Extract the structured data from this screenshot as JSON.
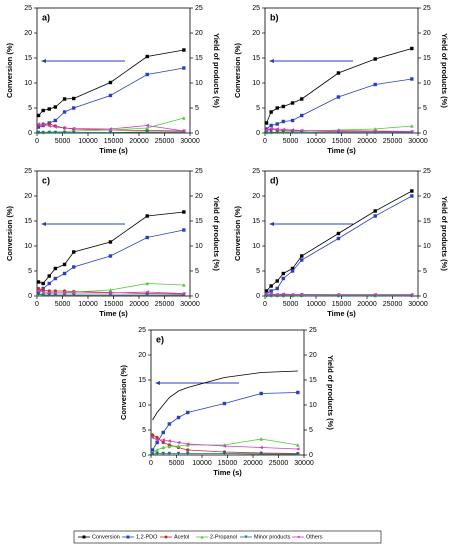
{
  "chart_data": [
    {
      "type": "line",
      "label": "a)",
      "xlabel": "Time (s)",
      "ylabel": "Conversion (%)",
      "y2label": "Yield of products (%)",
      "x": [
        300,
        1200,
        2400,
        3600,
        5400,
        7200,
        14400,
        21600,
        28800
      ],
      "xlim": [
        0,
        30000
      ],
      "xticks": [
        0,
        5000,
        10000,
        15000,
        20000,
        25000,
        30000
      ],
      "ylim": [
        0,
        25
      ],
      "yticks": [
        0,
        5,
        10,
        15,
        20,
        25
      ],
      "y2lim": [
        0,
        25
      ],
      "y2ticks": [
        0,
        5,
        10,
        15,
        20,
        25
      ],
      "series": [
        {
          "name": "Conversion",
          "color": "#000000",
          "marker": "square",
          "values": [
            3.5,
            4.5,
            4.8,
            5.2,
            6.8,
            6.9,
            10.1,
            15.3,
            16.6
          ]
        },
        {
          "name": "1,2-PDO",
          "color": "#2a3fbf",
          "marker": "square",
          "axis": "y2",
          "values": [
            1.2,
            1.5,
            2.0,
            2.5,
            4.2,
            5.0,
            7.5,
            11.7,
            13.0
          ]
        },
        {
          "name": "Acetol",
          "color": "#b03a1e",
          "marker": "circle",
          "axis": "y2",
          "values": [
            1.5,
            1.8,
            1.8,
            1.4,
            1.0,
            0.8,
            0.6,
            0.5,
            0.4
          ]
        },
        {
          "name": "2-Propanol",
          "color": "#4ccc33",
          "marker": "triangle",
          "axis": "y2",
          "values": [
            0.1,
            0.1,
            0.2,
            0.2,
            0.3,
            0.4,
            0.6,
            1.0,
            3.0
          ]
        },
        {
          "name": "Minor products",
          "color": "#1f6f7f",
          "marker": "down",
          "axis": "y2",
          "values": [
            0.1,
            0.1,
            0.1,
            0.1,
            0.1,
            0.1,
            0.1,
            0.2,
            0.2
          ]
        },
        {
          "name": "Others",
          "color": "#d13ad1",
          "marker": "left",
          "axis": "y2",
          "values": [
            1.8,
            1.6,
            1.4,
            1.2,
            1.0,
            0.9,
            0.8,
            1.5,
            0.4
          ]
        }
      ]
    },
    {
      "type": "line",
      "label": "b)",
      "xlabel": "Time (s)",
      "ylabel": "Conversion (%)",
      "y2label": "Yield of products (%)",
      "x": [
        300,
        1200,
        2400,
        3600,
        5400,
        7200,
        14400,
        21600,
        28800
      ],
      "xlim": [
        0,
        30000
      ],
      "xticks": [
        0,
        5000,
        10000,
        15000,
        20000,
        25000,
        30000
      ],
      "ylim": [
        0,
        25
      ],
      "yticks": [
        0,
        5,
        10,
        15,
        20,
        25
      ],
      "y2lim": [
        0,
        25
      ],
      "y2ticks": [
        0,
        5,
        10,
        15,
        20,
        25
      ],
      "series": [
        {
          "name": "Conversion",
          "color": "#000000",
          "marker": "square",
          "values": [
            2.0,
            4.2,
            5.0,
            5.3,
            6.0,
            6.8,
            12.0,
            14.8,
            16.9
          ]
        },
        {
          "name": "1,2-PDO",
          "color": "#2a3fbf",
          "marker": "square",
          "axis": "y2",
          "values": [
            0.8,
            1.5,
            1.8,
            2.3,
            2.5,
            3.5,
            7.2,
            9.7,
            10.8
          ]
        },
        {
          "name": "Acetol",
          "color": "#b03a1e",
          "marker": "circle",
          "axis": "y2",
          "values": [
            0.5,
            0.7,
            0.6,
            0.5,
            0.5,
            0.4,
            0.3,
            0.3,
            0.2
          ]
        },
        {
          "name": "2-Propanol",
          "color": "#4ccc33",
          "marker": "triangle",
          "axis": "y2",
          "values": [
            0.1,
            0.1,
            0.2,
            0.2,
            0.3,
            0.3,
            0.6,
            0.8,
            1.4
          ]
        },
        {
          "name": "Minor products",
          "color": "#1f6f7f",
          "marker": "down",
          "axis": "y2",
          "values": [
            0.1,
            0.1,
            0.1,
            0.1,
            0.1,
            0.1,
            0.1,
            0.1,
            0.1
          ]
        },
        {
          "name": "Others",
          "color": "#d13ad1",
          "marker": "left",
          "axis": "y2",
          "values": [
            0.6,
            0.9,
            0.8,
            0.7,
            0.6,
            0.5,
            0.5,
            0.4,
            0.3
          ]
        }
      ]
    },
    {
      "type": "line",
      "label": "c)",
      "xlabel": "Time (s)",
      "ylabel": "Conversion (%)",
      "y2label": "Yield of products (%)",
      "x": [
        300,
        1200,
        2400,
        3600,
        5400,
        7200,
        14400,
        21600,
        28800
      ],
      "xlim": [
        0,
        30000
      ],
      "xticks": [
        0,
        5000,
        10000,
        15000,
        20000,
        25000,
        30000
      ],
      "ylim": [
        0,
        25
      ],
      "yticks": [
        0,
        5,
        10,
        15,
        20,
        25
      ],
      "y2lim": [
        0,
        25
      ],
      "y2ticks": [
        0,
        5,
        10,
        15,
        20,
        25
      ],
      "series": [
        {
          "name": "Conversion",
          "color": "#000000",
          "marker": "square",
          "values": [
            2.8,
            2.5,
            4.0,
            5.5,
            6.3,
            8.8,
            10.8,
            16.0,
            16.8
          ]
        },
        {
          "name": "1,2-PDO",
          "color": "#2a3fbf",
          "marker": "square",
          "axis": "y2",
          "values": [
            0.8,
            1.5,
            2.5,
            3.5,
            4.5,
            5.8,
            8.0,
            11.7,
            13.2
          ]
        },
        {
          "name": "Acetol",
          "color": "#b03a1e",
          "marker": "circle",
          "axis": "y2",
          "values": [
            1.5,
            1.2,
            1.0,
            1.0,
            1.0,
            0.9,
            0.7,
            0.5,
            0.4
          ]
        },
        {
          "name": "2-Propanol",
          "color": "#4ccc33",
          "marker": "triangle",
          "axis": "y2",
          "values": [
            0.3,
            0.4,
            0.5,
            0.6,
            0.7,
            0.8,
            1.2,
            2.5,
            2.2
          ]
        },
        {
          "name": "Minor products",
          "color": "#1f6f7f",
          "marker": "down",
          "axis": "y2",
          "values": [
            0.3,
            0.2,
            0.2,
            0.2,
            0.2,
            0.2,
            0.2,
            0.2,
            0.2
          ]
        },
        {
          "name": "Others",
          "color": "#d13ad1",
          "marker": "left",
          "axis": "y2",
          "values": [
            1.0,
            0.8,
            0.7,
            0.6,
            0.6,
            0.6,
            0.6,
            0.8,
            0.5
          ]
        }
      ]
    },
    {
      "type": "line",
      "label": "d)",
      "xlabel": "Time (s)",
      "ylabel": "Conversion (%)",
      "y2label": "Yield of products (%)",
      "x": [
        300,
        1200,
        2400,
        3600,
        5400,
        7200,
        14400,
        21600,
        28800
      ],
      "xlim": [
        0,
        30000
      ],
      "xticks": [
        0,
        5000,
        10000,
        15000,
        20000,
        25000,
        30000
      ],
      "ylim": [
        0,
        25
      ],
      "yticks": [
        0,
        5,
        10,
        15,
        20,
        25
      ],
      "y2lim": [
        0,
        25
      ],
      "y2ticks": [
        0,
        5,
        10,
        15,
        20,
        25
      ],
      "series": [
        {
          "name": "Conversion",
          "color": "#000000",
          "marker": "square",
          "values": [
            1.0,
            2.0,
            3.0,
            4.5,
            5.5,
            8.0,
            12.5,
            17.0,
            21.0
          ]
        },
        {
          "name": "1,2-PDO",
          "color": "#2a3fbf",
          "marker": "square",
          "axis": "y2",
          "values": [
            0.5,
            1.0,
            1.5,
            3.5,
            5.0,
            7.2,
            11.5,
            16.0,
            20.0
          ]
        },
        {
          "name": "Acetol",
          "color": "#b03a1e",
          "marker": "circle",
          "axis": "y2",
          "values": [
            0.3,
            0.3,
            0.2,
            0.3,
            0.2,
            0.3,
            0.2,
            0.2,
            0.2
          ]
        },
        {
          "name": "2-Propanol",
          "color": "#4ccc33",
          "marker": "triangle",
          "axis": "y2",
          "values": [
            0.1,
            0.1,
            0.1,
            0.1,
            0.1,
            0.1,
            0.1,
            0.1,
            0.1
          ]
        },
        {
          "name": "Minor products",
          "color": "#1f6f7f",
          "marker": "down",
          "axis": "y2",
          "values": [
            0.05,
            0.05,
            0.05,
            0.05,
            0.05,
            0.05,
            0.05,
            0.05,
            0.05
          ]
        },
        {
          "name": "Others",
          "color": "#d13ad1",
          "marker": "left",
          "axis": "y2",
          "values": [
            0.4,
            0.4,
            0.3,
            0.4,
            0.3,
            0.3,
            0.3,
            0.3,
            0.3
          ]
        }
      ]
    },
    {
      "type": "line",
      "label": "e)",
      "xlabel": "Time (s)",
      "ylabel": "Conversion (%)",
      "y2label": "Yield of products (%)",
      "x": [
        300,
        1200,
        2400,
        3600,
        5400,
        7200,
        14400,
        21600,
        28800
      ],
      "xlim": [
        0,
        30000
      ],
      "xticks": [
        0,
        5000,
        10000,
        15000,
        20000,
        25000,
        30000
      ],
      "ylim": [
        0,
        25
      ],
      "yticks": [
        0,
        5,
        10,
        15,
        20,
        25
      ],
      "y2lim": [
        0,
        25
      ],
      "y2ticks": [
        0,
        5,
        10,
        15,
        20,
        25
      ],
      "series": [
        {
          "name": "Conversion",
          "color": "#000000",
          "marker": "none",
          "values": [
            7.0,
            8.5,
            10.0,
            11.5,
            12.8,
            13.5,
            15.5,
            16.5,
            16.8
          ]
        },
        {
          "name": "1,2-PDO",
          "color": "#2a3fbf",
          "marker": "square",
          "axis": "y2",
          "values": [
            1.0,
            2.5,
            4.5,
            6.2,
            7.5,
            8.5,
            10.3,
            12.3,
            12.5
          ]
        },
        {
          "name": "Acetol",
          "color": "#b03a1e",
          "marker": "circle",
          "axis": "y2",
          "values": [
            4.0,
            3.5,
            2.5,
            2.0,
            1.5,
            1.0,
            0.6,
            0.4,
            0.3
          ]
        },
        {
          "name": "2-Propanol",
          "color": "#4ccc33",
          "marker": "triangle",
          "axis": "y2",
          "values": [
            0.5,
            1.0,
            1.5,
            1.7,
            1.8,
            2.0,
            2.0,
            3.2,
            2.0
          ]
        },
        {
          "name": "Minor products",
          "color": "#1f6f7f",
          "marker": "down",
          "axis": "y2",
          "values": [
            0.2,
            0.3,
            0.3,
            0.3,
            0.3,
            0.3,
            0.3,
            0.2,
            0.2
          ]
        },
        {
          "name": "Others",
          "color": "#d13ad1",
          "marker": "left",
          "axis": "y2",
          "values": [
            3.5,
            3.0,
            3.0,
            2.8,
            2.5,
            2.2,
            1.8,
            1.5,
            1.2
          ]
        }
      ]
    }
  ]
}
